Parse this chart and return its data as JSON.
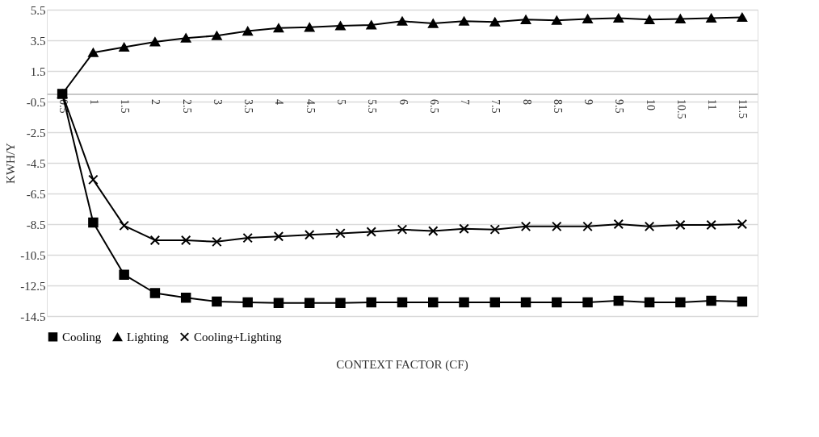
{
  "chart_data": {
    "type": "line",
    "xlabel": "CONTEXT FACTOR (CF)",
    "ylabel": "KWH/Y",
    "categories": [
      "0.5",
      "1",
      "1.5",
      "2",
      "2.5",
      "3",
      "3.5",
      "4",
      "4.5",
      "5",
      "5.5",
      "6",
      "6.5",
      "7",
      "7.5",
      "8",
      "8.5",
      "9",
      "9.5",
      "10",
      "10.5",
      "11",
      "11.5"
    ],
    "series": [
      {
        "name": "Cooling",
        "color": "#000000",
        "marker": "square",
        "values": [
          0,
          -8.4,
          -11.8,
          -13.0,
          -13.3,
          -13.55,
          -13.6,
          -13.65,
          -13.65,
          -13.65,
          -13.6,
          -13.6,
          -13.6,
          -13.6,
          -13.6,
          -13.6,
          -13.6,
          -13.6,
          -13.5,
          -13.6,
          -13.6,
          -13.5,
          -13.55
        ]
      },
      {
        "name": "Lighting",
        "color": "#000000",
        "marker": "triangle",
        "values": [
          0,
          2.7,
          3.05,
          3.4,
          3.65,
          3.8,
          4.1,
          4.3,
          4.35,
          4.45,
          4.5,
          4.75,
          4.6,
          4.75,
          4.7,
          4.85,
          4.8,
          4.9,
          4.95,
          4.85,
          4.9,
          4.95,
          5.0
        ]
      },
      {
        "name": "Cooling+Lighting",
        "color": "#000000",
        "marker": "cross",
        "values": [
          0,
          -5.6,
          -8.6,
          -9.55,
          -9.55,
          -9.65,
          -9.4,
          -9.3,
          -9.2,
          -9.1,
          -9.0,
          -8.85,
          -8.95,
          -8.8,
          -8.85,
          -8.65,
          -8.65,
          -8.65,
          -8.5,
          -8.65,
          -8.55,
          -8.55,
          -8.5
        ]
      }
    ],
    "ylim": [
      -14.5,
      5.5
    ],
    "yticks": [
      -14.5,
      -12.5,
      -10.5,
      -8.5,
      -6.5,
      -4.5,
      -2.5,
      -0.5,
      1.5,
      3.5,
      5.5
    ],
    "grid": "y",
    "legend": "bottom",
    "line_style": "solid"
  }
}
